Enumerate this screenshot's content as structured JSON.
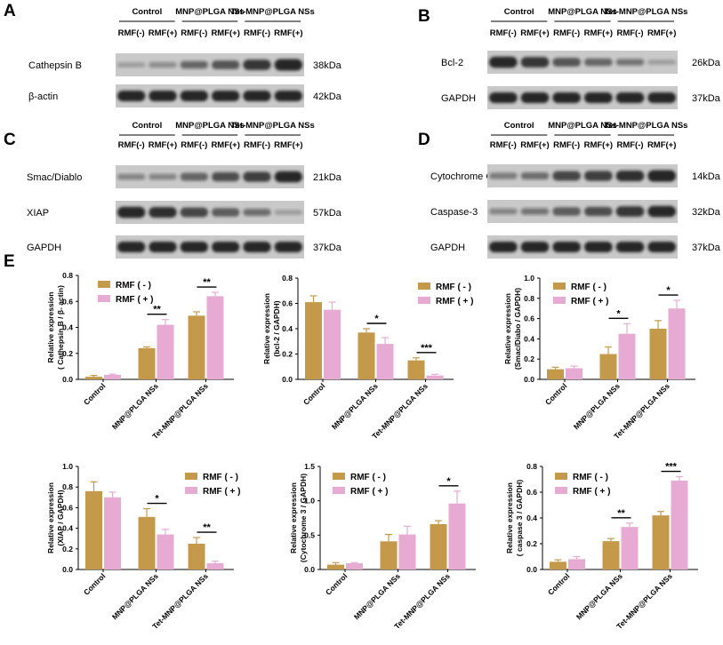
{
  "blots": [
    {
      "letter": "A",
      "groups": [
        "Control",
        "MNP@PLGA NSs",
        "Tet-MNP@PLGA NSs"
      ],
      "lanes": [
        "RMF(-)",
        "RMF(+)",
        "RMF(-)",
        "RMF(+)",
        "RMF(-)",
        "RMF(+)"
      ],
      "rows": [
        {
          "label": "Cathepsin B",
          "kda": "38kDa",
          "intensity": [
            0.15,
            0.25,
            0.5,
            0.65,
            0.85,
            1.0
          ]
        },
        {
          "label": "β-actin",
          "kda": "42kDa",
          "intensity": [
            1,
            1,
            1,
            1,
            1,
            1
          ]
        }
      ]
    },
    {
      "letter": "B",
      "groups": [
        "Control",
        "MNP@PLGA NSs",
        "Tet-MNP@PLGA NSs"
      ],
      "lanes": [
        "RMF(-)",
        "RMF(+)",
        "RMF(-)",
        "RMF(+)",
        "RMF(-)",
        "RMF(+)"
      ],
      "rows": [
        {
          "label": "Bcl-2",
          "kda": "26kDa",
          "intensity": [
            0.95,
            0.85,
            0.65,
            0.5,
            0.4,
            0.15
          ]
        },
        {
          "label": "GAPDH",
          "kda": "37kDa",
          "intensity": [
            1,
            1,
            1,
            1,
            1,
            1
          ]
        }
      ]
    },
    {
      "letter": "C",
      "groups": [
        "Control",
        "MNP@PLGA NSs",
        "Tet-MNP@PLGA NSs"
      ],
      "lanes": [
        "RMF(-)",
        "RMF(+)",
        "RMF(-)",
        "RMF(+)",
        "RMF(-)",
        "RMF(+)"
      ],
      "rows": [
        {
          "label": "Smac/Diablo",
          "kda": "21kDa",
          "intensity": [
            0.3,
            0.3,
            0.55,
            0.7,
            0.8,
            0.95
          ]
        },
        {
          "label": "XIAP",
          "kda": "57kDa",
          "intensity": [
            0.95,
            0.9,
            0.75,
            0.6,
            0.45,
            0.15
          ]
        },
        {
          "label": "GAPDH",
          "kda": "37kDa",
          "intensity": [
            1,
            1,
            1,
            1,
            1,
            1
          ]
        }
      ]
    },
    {
      "letter": "D",
      "groups": [
        "Control",
        "MNP@PLGA NSs",
        "Tet-MNP@PLGA NSs"
      ],
      "lanes": [
        "RMF(-)",
        "RMF(+)",
        "RMF(-)",
        "RMF(+)",
        "RMF(-)",
        "RMF(+)"
      ],
      "rows": [
        {
          "label": "Cytochrome C",
          "kda": "14kDa",
          "intensity": [
            0.35,
            0.45,
            0.75,
            0.8,
            0.9,
            1.0
          ]
        },
        {
          "label": "Caspase-3",
          "kda": "32kDa",
          "intensity": [
            0.3,
            0.4,
            0.6,
            0.7,
            0.85,
            0.95
          ]
        },
        {
          "label": "GAPDH",
          "kda": "37kDa",
          "intensity": [
            1,
            1,
            1,
            1,
            1,
            1
          ]
        }
      ]
    }
  ],
  "panel_e_letter": "E",
  "colors": {
    "minus": "#c49a4a",
    "plus": "#e7aad3",
    "band": "#1a1a1a"
  },
  "chart_data": [
    {
      "type": "bar",
      "categories": [
        "Control",
        "MNP@PLGA NSs",
        "Tet-MNP@PLGA NSs"
      ],
      "ylabel": [
        "Relative expression",
        "( Cathepsin B / β- actin)"
      ],
      "ylim": [
        0,
        0.8
      ],
      "yticks": [
        "0.0",
        "0.2",
        "0.4",
        "0.6",
        "0.8"
      ],
      "legend": [
        "RMF ( - )",
        "RMF ( + )"
      ],
      "series": [
        {
          "name": "RMF ( - )",
          "values": [
            0.02,
            0.24,
            0.49
          ],
          "errors": [
            0.01,
            0.01,
            0.03
          ]
        },
        {
          "name": "RMF ( + )",
          "values": [
            0.035,
            0.42,
            0.64
          ],
          "errors": [
            0.005,
            0.04,
            0.03
          ]
        }
      ],
      "significance": [
        "",
        "**",
        "**"
      ]
    },
    {
      "type": "bar",
      "categories": [
        "Control",
        "MNP@PLGA NSs",
        "Tet-MNP@PLGA NSs"
      ],
      "ylabel": [
        "Relative expression",
        "(bcl-2 / GAPDH)"
      ],
      "ylim": [
        0,
        0.8
      ],
      "yticks": [
        "0.0",
        "0.2",
        "0.4",
        "0.6",
        "0.8"
      ],
      "legend": [
        "RMF ( - )",
        "RMF ( + )"
      ],
      "series": [
        {
          "name": "RMF ( - )",
          "values": [
            0.61,
            0.37,
            0.15
          ],
          "errors": [
            0.05,
            0.03,
            0.02
          ]
        },
        {
          "name": "RMF ( + )",
          "values": [
            0.55,
            0.28,
            0.03
          ],
          "errors": [
            0.06,
            0.05,
            0.01
          ]
        }
      ],
      "significance": [
        "",
        "*",
        "***"
      ]
    },
    {
      "type": "bar",
      "categories": [
        "Control",
        "MNP@PLGA NSs",
        "Tet-MNP@PLGA NSs"
      ],
      "ylabel": [
        "Relative expression",
        "(Smac/Diabo / GAPDH)"
      ],
      "ylim": [
        0,
        1.0
      ],
      "yticks": [
        "0.0",
        "0.2",
        "0.4",
        "0.6",
        "0.8",
        "1.0"
      ],
      "legend": [
        "RMF ( - )",
        "RMF ( + )"
      ],
      "series": [
        {
          "name": "RMF ( - )",
          "values": [
            0.1,
            0.25,
            0.5
          ],
          "errors": [
            0.02,
            0.07,
            0.08
          ]
        },
        {
          "name": "RMF ( + )",
          "values": [
            0.11,
            0.45,
            0.7
          ],
          "errors": [
            0.02,
            0.1,
            0.08
          ]
        }
      ],
      "significance": [
        "",
        "*",
        "*"
      ]
    },
    {
      "type": "bar",
      "categories": [
        "Control",
        "MNP@PLGA NSs",
        "Tet-MNP@PLGA NSs"
      ],
      "ylabel": [
        "Relative expression",
        "(XIAP / GAPDH)"
      ],
      "ylim": [
        0,
        1.0
      ],
      "yticks": [
        "0.0",
        "0.2",
        "0.4",
        "0.6",
        "0.8",
        "1.0"
      ],
      "legend": [
        "RMF ( - )",
        "RMF ( + )"
      ],
      "series": [
        {
          "name": "RMF ( - )",
          "values": [
            0.76,
            0.51,
            0.25
          ],
          "errors": [
            0.09,
            0.08,
            0.06
          ]
        },
        {
          "name": "RMF ( + )",
          "values": [
            0.7,
            0.34,
            0.06
          ],
          "errors": [
            0.05,
            0.05,
            0.02
          ]
        }
      ],
      "significance": [
        "",
        "*",
        "**"
      ]
    },
    {
      "type": "bar",
      "categories": [
        "Control",
        "MNP@PLGA NSs",
        "Tet-MNP@PLGA NSs"
      ],
      "ylabel": [
        "Relative expression",
        "(Cytochrome 3 / GAPDH)"
      ],
      "ylim": [
        0,
        1.5
      ],
      "yticks": [
        "0.0",
        "0.5",
        "1.0",
        "1.5"
      ],
      "legend": [
        "RMF ( - )",
        "RMF ( + )"
      ],
      "series": [
        {
          "name": "RMF ( - )",
          "values": [
            0.07,
            0.41,
            0.66
          ],
          "errors": [
            0.03,
            0.1,
            0.05
          ]
        },
        {
          "name": "RMF ( + )",
          "values": [
            0.09,
            0.51,
            0.96
          ],
          "errors": [
            0.01,
            0.12,
            0.18
          ]
        }
      ],
      "significance": [
        "",
        "",
        "*"
      ]
    },
    {
      "type": "bar",
      "categories": [
        "Control",
        "MNP@PLGA NSs",
        "Tet-MNP@PLGA NSs"
      ],
      "ylabel": [
        "Relative expression",
        "( caspase 3 / GAPDH)"
      ],
      "ylim": [
        0,
        0.8
      ],
      "yticks": [
        "0.0",
        "0.2",
        "0.4",
        "0.6",
        "0.8"
      ],
      "legend": [
        "RMF ( - )",
        "RMF ( + )"
      ],
      "series": [
        {
          "name": "RMF ( - )",
          "values": [
            0.06,
            0.22,
            0.42
          ],
          "errors": [
            0.015,
            0.02,
            0.03
          ]
        },
        {
          "name": "RMF ( + )",
          "values": [
            0.08,
            0.33,
            0.69
          ],
          "errors": [
            0.02,
            0.03,
            0.03
          ]
        }
      ],
      "significance": [
        "",
        "**",
        "***"
      ]
    }
  ]
}
